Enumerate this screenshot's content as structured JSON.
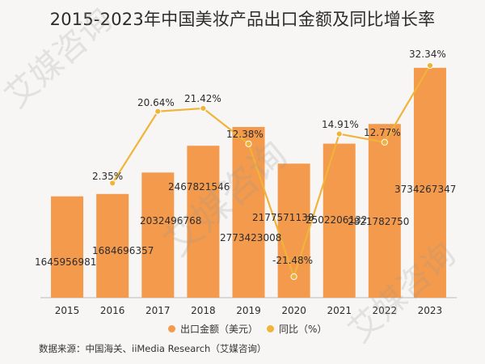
{
  "title": "2015-2023年中国美妆产品出口金额及同比增长率",
  "source": "数据来源：中国海关、iiMedia Research（艾媒咨询）",
  "watermark": "艾媒咨询",
  "colors": {
    "bar": "#f39a4c",
    "line": "#f0b43a",
    "text": "#2c2c2c"
  },
  "chart_data": {
    "type": "bar",
    "categories": [
      "2015",
      "2016",
      "2017",
      "2018",
      "2019",
      "2020",
      "2021",
      "2022",
      "2023"
    ],
    "series": [
      {
        "name": "出口金额（美元）",
        "type": "bar",
        "values": [
          1645956981,
          1684696357,
          2032496768,
          2467821546,
          2773423008,
          2177571138,
          2502206132,
          2821782750,
          3734267347
        ],
        "labels": [
          "1645956981",
          "1684696357",
          "2032496768",
          "2467821546",
          "2773423008",
          "2177571138",
          "2502206132",
          "2821782750",
          "3734267347"
        ]
      },
      {
        "name": "同比（%）",
        "type": "line",
        "values": [
          null,
          2.35,
          20.64,
          21.42,
          12.38,
          -21.48,
          14.91,
          12.77,
          32.34
        ],
        "labels": [
          "",
          "2.35%",
          "20.64%",
          "21.42%",
          "12.38%",
          "-21.48%",
          "14.91%",
          "12.77%",
          "32.34%"
        ]
      }
    ],
    "legend": [
      "出口金额（美元）",
      "同比（%）"
    ],
    "legend_position": "bottom",
    "grid": false
  }
}
